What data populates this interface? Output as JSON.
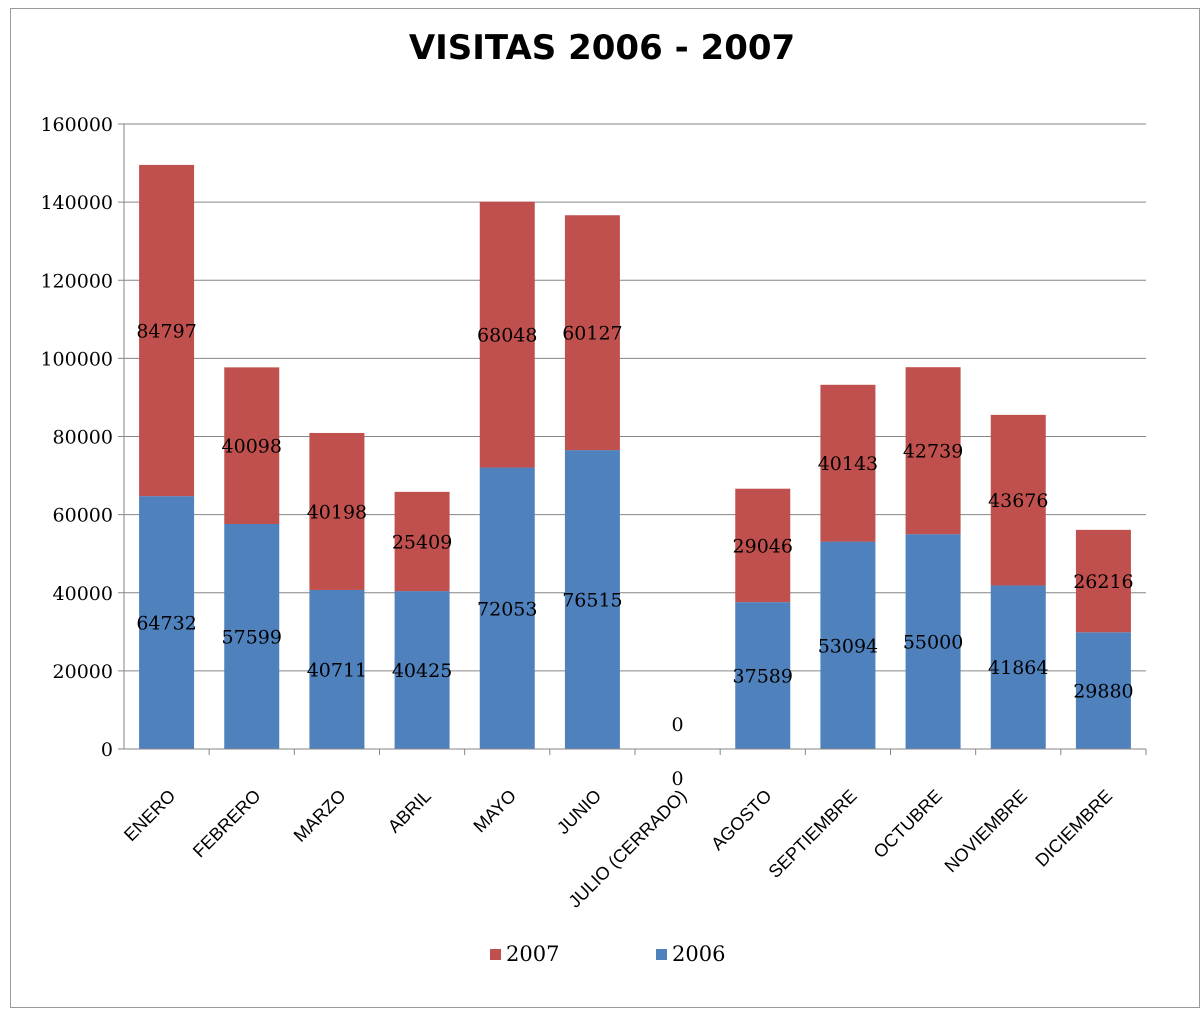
{
  "chart_data": {
    "type": "bar",
    "stacked": true,
    "title": "VISITAS 2006 - 2007",
    "categories": [
      "ENERO",
      "FEBRERO",
      "MARZO",
      "ABRIL",
      "MAYO",
      "JUNIO",
      "JULIO (CERRADO)",
      "AGOSTO",
      "SEPTIEMBRE",
      "OCTUBRE",
      "NOVIEMBRE",
      "DICIEMBRE"
    ],
    "series": [
      {
        "name": "2006",
        "color": "#4f81bd",
        "values": [
          64732,
          57599,
          40711,
          40425,
          72053,
          76515,
          0,
          37589,
          53094,
          55000,
          41864,
          29880
        ]
      },
      {
        "name": "2007",
        "color": "#c0504d",
        "values": [
          84797,
          40098,
          40198,
          25409,
          68048,
          60127,
          0,
          29046,
          40143,
          42739,
          43676,
          26216
        ]
      }
    ],
    "ylim": [
      0,
      160000
    ],
    "yticks": [
      0,
      20000,
      40000,
      60000,
      80000,
      100000,
      120000,
      140000,
      160000
    ],
    "grid": true,
    "legend_position": "bottom",
    "legend_order": [
      "2007",
      "2006"
    ]
  }
}
